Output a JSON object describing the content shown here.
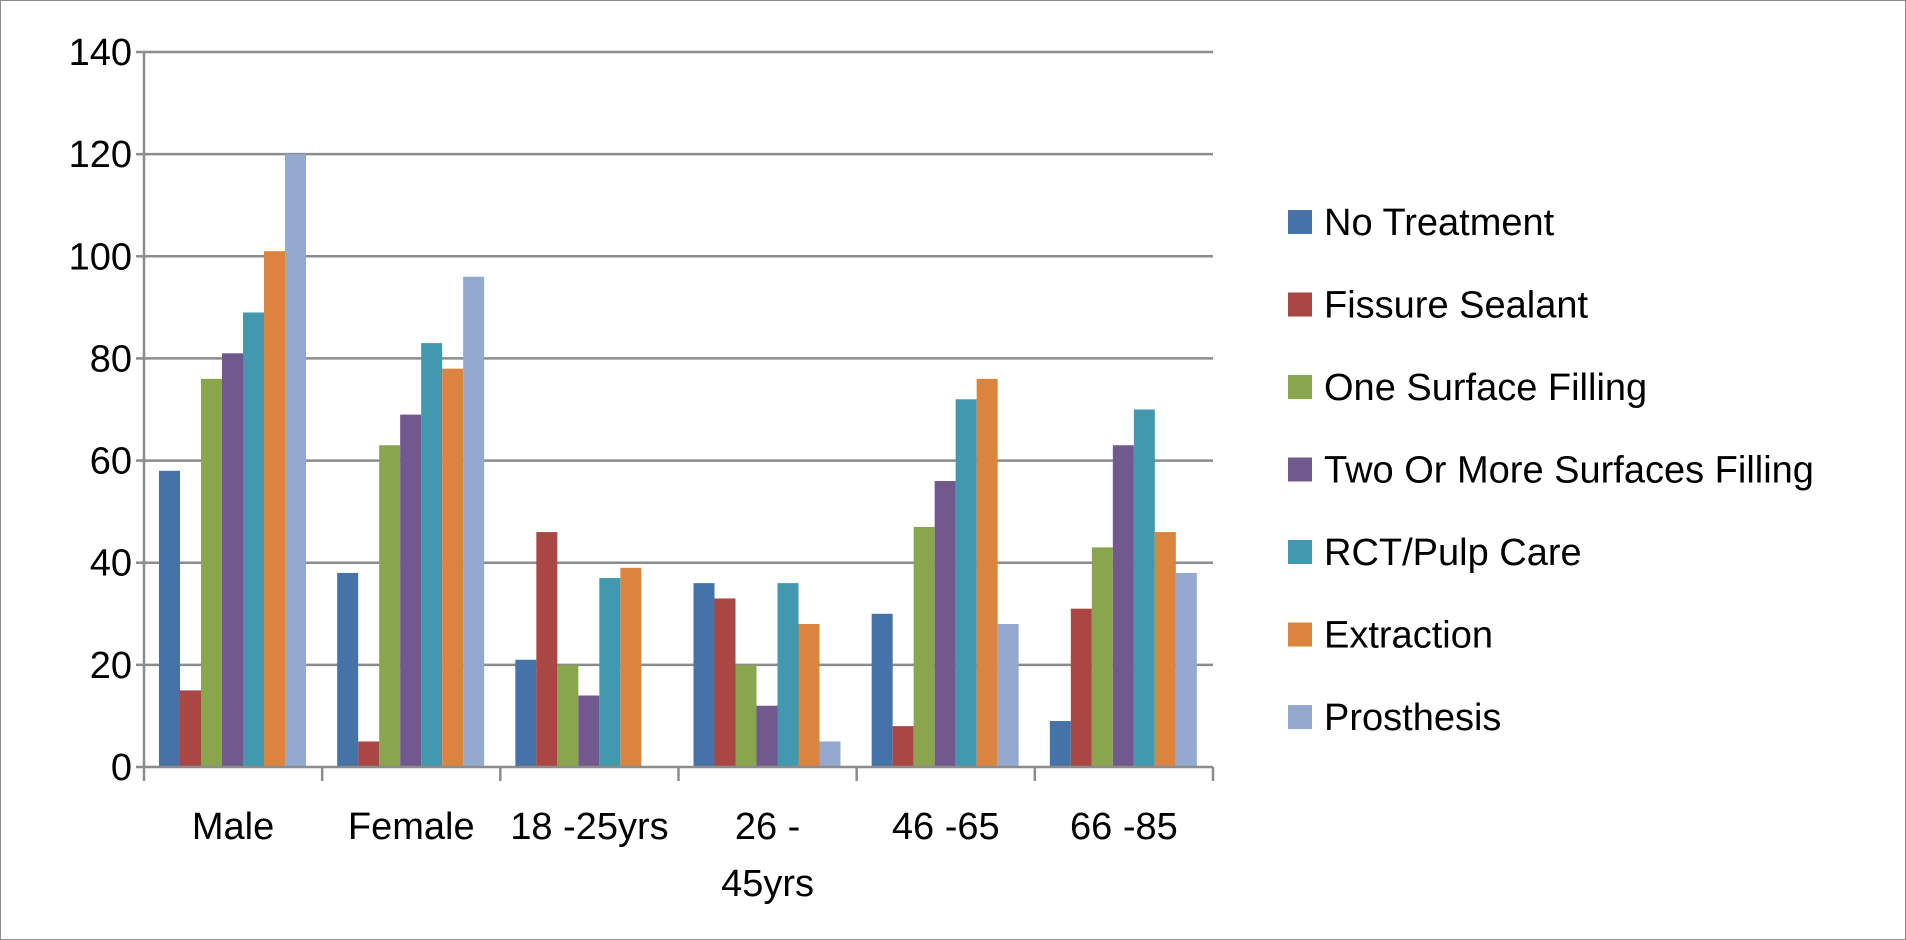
{
  "chart_data": {
    "type": "bar",
    "title": "",
    "xlabel": "",
    "ylabel": "",
    "ylim": [
      0,
      140
    ],
    "yticks": [
      0,
      20,
      40,
      60,
      80,
      100,
      120,
      140
    ],
    "grid": true,
    "legend_position": "right",
    "categories": [
      "Male",
      "Female",
      "18 -25yrs",
      "26 - 45yrs",
      "46 -65",
      "66 -85"
    ],
    "category_label_lines": [
      [
        "Male"
      ],
      [
        "Female"
      ],
      [
        "18 -25yrs"
      ],
      [
        "26 -",
        "45yrs"
      ],
      [
        "46 -65"
      ],
      [
        "66 -85"
      ]
    ],
    "series": [
      {
        "name": "No Treatment",
        "color": "#4572A7",
        "values": [
          58,
          38,
          21,
          36,
          30,
          9
        ]
      },
      {
        "name": "Fissure Sealant",
        "color": "#AA4643",
        "values": [
          15,
          5,
          46,
          33,
          8,
          31
        ]
      },
      {
        "name": "One Surface Filling",
        "color": "#89A54E",
        "values": [
          76,
          63,
          20,
          20,
          47,
          43
        ]
      },
      {
        "name": "Two Or More Surfaces Filling",
        "color": "#71588F",
        "values": [
          81,
          69,
          14,
          12,
          56,
          63
        ]
      },
      {
        "name": "RCT/Pulp Care",
        "color": "#4198AF",
        "values": [
          89,
          83,
          37,
          36,
          72,
          70
        ]
      },
      {
        "name": "Extraction",
        "color": "#DB843D",
        "values": [
          101,
          78,
          39,
          28,
          76,
          46
        ]
      },
      {
        "name": "Prosthesis",
        "color": "#93A9CF",
        "values": [
          120,
          96,
          0,
          5,
          28,
          38
        ]
      }
    ]
  }
}
